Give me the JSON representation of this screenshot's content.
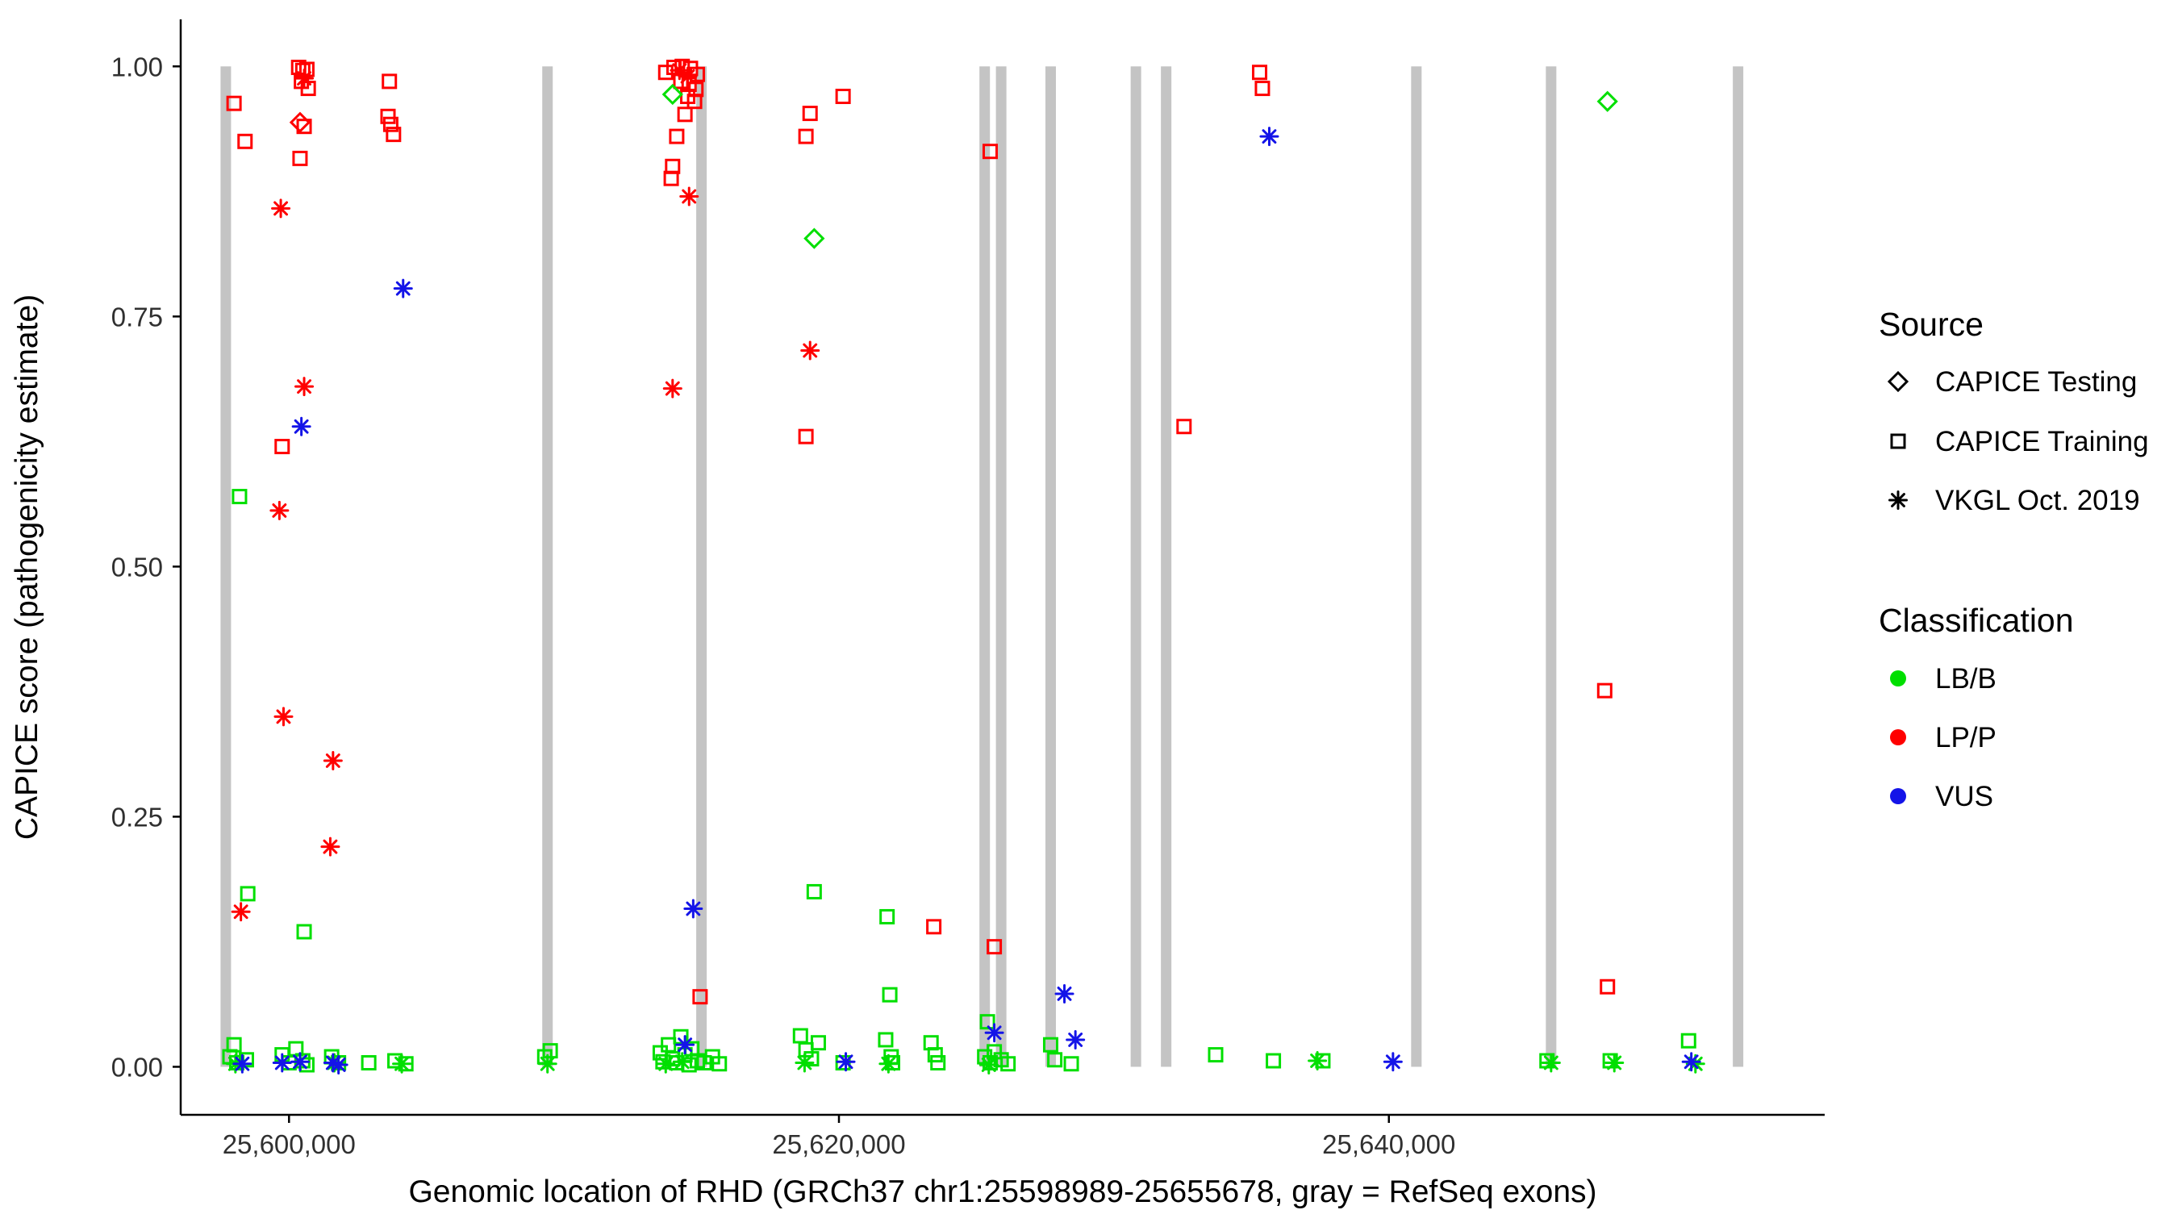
{
  "chart_data": {
    "type": "scatter",
    "title": "",
    "xlabel": "Genomic location of RHD (GRCh37 chr1:25598989-25655678, gray = RefSeq exons)",
    "ylabel": "CAPICE score (pathogenicity estimate)",
    "xlim": [
      25596060,
      25655850
    ],
    "ylim": [
      -0.048,
      1.047
    ],
    "x_ticks": [
      {
        "value": 25600000,
        "label": "25,600,000"
      },
      {
        "value": 25620000,
        "label": "25,620,000"
      },
      {
        "value": 25640000,
        "label": "25,640,000"
      }
    ],
    "y_ticks": [
      {
        "value": 0.0,
        "label": "0.00"
      },
      {
        "value": 0.25,
        "label": "0.25"
      },
      {
        "value": 0.5,
        "label": "0.50"
      },
      {
        "value": 0.75,
        "label": "0.75"
      },
      {
        "value": 1.0,
        "label": "1.00"
      }
    ],
    "grid": false,
    "colors": {
      "LB/B": "#00DF00",
      "LP/P": "#FF0000",
      "VUS": "#1414E8",
      "exon": "#C4C4C4",
      "axis": "#000000"
    },
    "exons": [
      25597700,
      25609400,
      25615000,
      25625300,
      25625900,
      25627700,
      25630800,
      25631900,
      25641000,
      25645900,
      25652700
    ],
    "legend": {
      "source": {
        "title": "Source",
        "items": [
          {
            "label": "CAPICE Testing",
            "marker": "diamond"
          },
          {
            "label": "CAPICE Training",
            "marker": "square"
          },
          {
            "label": "VKGL Oct. 2019",
            "marker": "asterisk"
          }
        ]
      },
      "classification": {
        "title": "Classification",
        "items": [
          {
            "label": "LB/B",
            "color": "#00DF00"
          },
          {
            "label": "LP/P",
            "color": "#FF0000"
          },
          {
            "label": "VUS",
            "color": "#1414E8"
          }
        ]
      }
    },
    "series": [
      {
        "name": "CAPICE Training LP/P",
        "source": "CAPICE Training",
        "classification": "LP/P",
        "marker": "square",
        "points": [
          [
            25598000,
            0.963
          ],
          [
            25598400,
            0.925
          ],
          [
            25600350,
            0.999
          ],
          [
            25600500,
            0.996
          ],
          [
            25600650,
            0.997
          ],
          [
            25600450,
            0.985
          ],
          [
            25600700,
            0.978
          ],
          [
            25600400,
            0.908
          ],
          [
            25600550,
            0.94
          ],
          [
            25603650,
            0.985
          ],
          [
            25603600,
            0.95
          ],
          [
            25603700,
            0.942
          ],
          [
            25603800,
            0.932
          ],
          [
            25599750,
            0.62
          ],
          [
            25613700,
            0.994
          ],
          [
            25614000,
            0.999
          ],
          [
            25614300,
            1.0
          ],
          [
            25614600,
            0.998
          ],
          [
            25614850,
            0.992
          ],
          [
            25614250,
            0.985
          ],
          [
            25614550,
            0.982
          ],
          [
            25614800,
            0.977
          ],
          [
            25614500,
            0.97
          ],
          [
            25614750,
            0.965
          ],
          [
            25614400,
            0.952
          ],
          [
            25614100,
            0.93
          ],
          [
            25613950,
            0.9
          ],
          [
            25613900,
            0.888
          ],
          [
            25614950,
            0.07
          ],
          [
            25618950,
            0.953
          ],
          [
            25618800,
            0.93
          ],
          [
            25620150,
            0.97
          ],
          [
            25618800,
            0.63
          ],
          [
            25623450,
            0.14
          ],
          [
            25625500,
            0.915
          ],
          [
            25625650,
            0.12
          ],
          [
            25632550,
            0.64
          ],
          [
            25635300,
            0.994
          ],
          [
            25635400,
            0.978
          ],
          [
            25647850,
            0.376
          ],
          [
            25647950,
            0.08
          ]
        ]
      },
      {
        "name": "CAPICE Training LB/B",
        "source": "CAPICE Training",
        "classification": "LB/B",
        "marker": "square",
        "points": [
          [
            25598200,
            0.57
          ],
          [
            25598500,
            0.173
          ],
          [
            25600550,
            0.135
          ],
          [
            25597850,
            0.01
          ],
          [
            25598000,
            0.022
          ],
          [
            25598100,
            0.004
          ],
          [
            25598450,
            0.007
          ],
          [
            25599750,
            0.012
          ],
          [
            25600000,
            0.004
          ],
          [
            25600250,
            0.018
          ],
          [
            25600500,
            0.006
          ],
          [
            25600650,
            0.002
          ],
          [
            25601550,
            0.01
          ],
          [
            25601800,
            0.004
          ],
          [
            25602900,
            0.004
          ],
          [
            25603850,
            0.006
          ],
          [
            25604250,
            0.003
          ],
          [
            25609300,
            0.01
          ],
          [
            25609500,
            0.016
          ],
          [
            25613500,
            0.014
          ],
          [
            25613600,
            0.005
          ],
          [
            25613800,
            0.022
          ],
          [
            25613950,
            0.008
          ],
          [
            25614100,
            0.004
          ],
          [
            25614250,
            0.03
          ],
          [
            25614400,
            0.012
          ],
          [
            25614550,
            0.002
          ],
          [
            25614650,
            0.018
          ],
          [
            25614850,
            0.006
          ],
          [
            25615100,
            0.004
          ],
          [
            25615400,
            0.01
          ],
          [
            25615650,
            0.003
          ],
          [
            25619100,
            0.175
          ],
          [
            25618600,
            0.031
          ],
          [
            25618800,
            0.017
          ],
          [
            25619000,
            0.008
          ],
          [
            25619250,
            0.024
          ],
          [
            25620150,
            0.004
          ],
          [
            25621750,
            0.15
          ],
          [
            25621850,
            0.072
          ],
          [
            25621700,
            0.027
          ],
          [
            25621900,
            0.01
          ],
          [
            25621950,
            0.004
          ],
          [
            25623350,
            0.024
          ],
          [
            25623500,
            0.012
          ],
          [
            25623600,
            0.004
          ],
          [
            25625400,
            0.045
          ],
          [
            25625300,
            0.01
          ],
          [
            25625500,
            0.004
          ],
          [
            25625650,
            0.015
          ],
          [
            25625900,
            0.007
          ],
          [
            25626150,
            0.003
          ],
          [
            25627700,
            0.022
          ],
          [
            25627850,
            0.007
          ],
          [
            25628450,
            0.003
          ],
          [
            25633700,
            0.012
          ],
          [
            25635800,
            0.006
          ],
          [
            25637600,
            0.006
          ],
          [
            25645750,
            0.006
          ],
          [
            25648050,
            0.006
          ],
          [
            25650900,
            0.026
          ]
        ]
      },
      {
        "name": "CAPICE Testing LP/P",
        "source": "CAPICE Testing",
        "classification": "LP/P",
        "marker": "diamond",
        "points": [
          [
            25600400,
            0.944
          ]
        ]
      },
      {
        "name": "CAPICE Testing LB/B",
        "source": "CAPICE Testing",
        "classification": "LB/B",
        "marker": "diamond",
        "points": [
          [
            25613950,
            0.972
          ],
          [
            25619100,
            0.828
          ],
          [
            25647950,
            0.965
          ]
        ]
      },
      {
        "name": "VKGL Oct. 2019 LP/P",
        "source": "VKGL Oct. 2019",
        "classification": "LP/P",
        "marker": "asterisk",
        "points": [
          [
            25600550,
            0.988
          ],
          [
            25599700,
            0.858
          ],
          [
            25600550,
            0.68
          ],
          [
            25599650,
            0.556
          ],
          [
            25599800,
            0.35
          ],
          [
            25601600,
            0.306
          ],
          [
            25601500,
            0.22
          ],
          [
            25598250,
            0.155
          ],
          [
            25614200,
            0.996
          ],
          [
            25614500,
            0.99
          ],
          [
            25614550,
            0.87
          ],
          [
            25613950,
            0.678
          ],
          [
            25618950,
            0.716
          ]
        ]
      },
      {
        "name": "VKGL Oct. 2019 LB/B",
        "source": "VKGL Oct. 2019",
        "classification": "LB/B",
        "marker": "asterisk",
        "points": [
          [
            25598050,
            0.003
          ],
          [
            25601650,
            0.004
          ],
          [
            25604100,
            0.003
          ],
          [
            25609400,
            0.003
          ],
          [
            25613700,
            0.003
          ],
          [
            25614300,
            0.005
          ],
          [
            25618750,
            0.004
          ],
          [
            25621800,
            0.003
          ],
          [
            25625450,
            0.002
          ],
          [
            25637400,
            0.006
          ],
          [
            25645900,
            0.004
          ],
          [
            25648200,
            0.004
          ],
          [
            25651150,
            0.003
          ]
        ]
      },
      {
        "name": "VKGL Oct. 2019 VUS",
        "source": "VKGL Oct. 2019",
        "classification": "VUS",
        "marker": "asterisk",
        "points": [
          [
            25604150,
            0.778
          ],
          [
            25600450,
            0.64
          ],
          [
            25614700,
            0.158
          ],
          [
            25635650,
            0.93
          ],
          [
            25625650,
            0.034
          ],
          [
            25628200,
            0.073
          ],
          [
            25628600,
            0.027
          ],
          [
            25640150,
            0.005
          ],
          [
            25651000,
            0.005
          ],
          [
            25598300,
            0.003
          ],
          [
            25599750,
            0.004
          ],
          [
            25600400,
            0.005
          ],
          [
            25601600,
            0.004
          ],
          [
            25601800,
            0.002
          ],
          [
            25614400,
            0.022
          ],
          [
            25620250,
            0.005
          ]
        ]
      }
    ]
  }
}
